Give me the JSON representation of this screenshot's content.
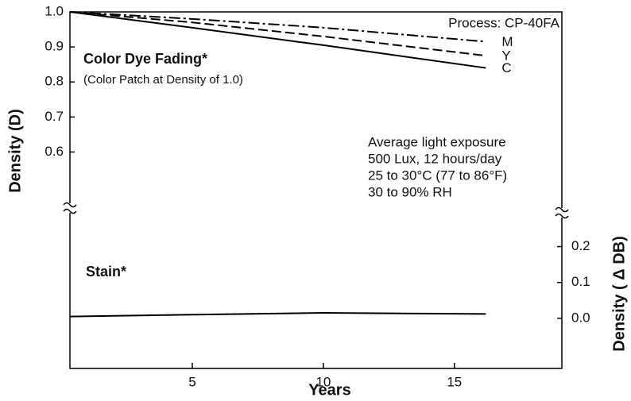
{
  "chart_data": {
    "type": "line",
    "annotations": [
      "Process: CP-40FA",
      "Color Dye Fading*",
      "(Color Patch at Density of 1.0)",
      "Average light exposure",
      "500 Lux, 12 hours/day",
      "25 to 30°C (77 to 86°F)",
      "30 to 90% RH",
      "Stain*"
    ],
    "xlabel": "Years",
    "ylabel": "Density (D)",
    "y2label": "Density ( Δ DB)",
    "x": [
      0.33,
      5,
      10,
      16.2
    ],
    "series": [
      {
        "name": "M",
        "color": "#000000",
        "dash": "dashdot",
        "values": [
          1.0,
          0.98,
          0.955,
          0.915
        ]
      },
      {
        "name": "Y",
        "color": "#000000",
        "dash": "dashed",
        "values": [
          1.0,
          0.97,
          0.93,
          0.875
        ]
      },
      {
        "name": "C",
        "color": "#000000",
        "dash": "solid",
        "values": [
          1.0,
          0.955,
          0.905,
          0.84
        ]
      },
      {
        "name": "Stain",
        "color": "#000000",
        "dash": "solid",
        "axis": "y2",
        "values": [
          0.005,
          0.01,
          0.015,
          0.012
        ]
      }
    ],
    "xlim": [
      0.33,
      19.1
    ],
    "xticks": [
      5,
      10,
      15
    ],
    "ylim": [
      0.44,
      1.0
    ],
    "yticks": [
      0.6,
      0.7,
      0.8,
      0.9,
      {
        "value": 1.0,
        "label": "1.0"
      }
    ],
    "y2lim": [
      -0.14,
      0.25
    ],
    "y2ticks": [
      {
        "value": 0.0,
        "label": "0.0"
      },
      0.1,
      0.2
    ]
  }
}
